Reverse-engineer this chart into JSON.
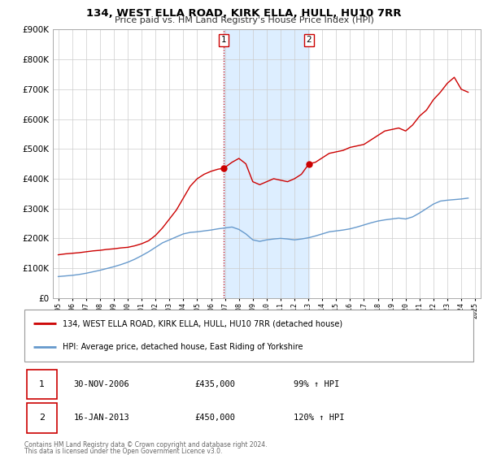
{
  "title": "134, WEST ELLA ROAD, KIRK ELLA, HULL, HU10 7RR",
  "subtitle": "Price paid vs. HM Land Registry's House Price Index (HPI)",
  "red_label": "134, WEST ELLA ROAD, KIRK ELLA, HULL, HU10 7RR (detached house)",
  "blue_label": "HPI: Average price, detached house, East Riding of Yorkshire",
  "transaction1": {
    "label": "1",
    "date": "30-NOV-2006",
    "price": "£435,000",
    "hpi": "99% ↑ HPI",
    "year": 2006.92
  },
  "transaction2": {
    "label": "2",
    "date": "16-JAN-2013",
    "price": "£450,000",
    "hpi": "120% ↑ HPI",
    "year": 2013.04
  },
  "footer1": "Contains HM Land Registry data © Crown copyright and database right 2024.",
  "footer2": "This data is licensed under the Open Government Licence v3.0.",
  "red_color": "#cc0000",
  "blue_color": "#6699cc",
  "shaded_color": "#ddeeff",
  "marker_color": "#cc0000",
  "ylim": [
    0,
    900000
  ],
  "yticks": [
    0,
    100000,
    200000,
    300000,
    400000,
    500000,
    600000,
    700000,
    800000,
    900000
  ],
  "xlim_start": 1994.6,
  "xlim_end": 2025.4,
  "red_x": [
    1995.0,
    1995.5,
    1996.0,
    1996.5,
    1997.0,
    1997.5,
    1998.0,
    1998.5,
    1999.0,
    1999.5,
    2000.0,
    2000.5,
    2001.0,
    2001.5,
    2002.0,
    2002.5,
    2003.0,
    2003.5,
    2004.0,
    2004.5,
    2005.0,
    2005.5,
    2006.0,
    2006.5,
    2006.92,
    2007.0,
    2007.5,
    2008.0,
    2008.5,
    2009.0,
    2009.5,
    2010.0,
    2010.5,
    2011.0,
    2011.5,
    2012.0,
    2012.5,
    2013.04,
    2013.5,
    2014.0,
    2014.5,
    2015.0,
    2015.5,
    2016.0,
    2016.5,
    2017.0,
    2017.5,
    2018.0,
    2018.5,
    2019.0,
    2019.5,
    2020.0,
    2020.5,
    2021.0,
    2021.5,
    2022.0,
    2022.5,
    2023.0,
    2023.5,
    2024.0,
    2024.5
  ],
  "red_y": [
    145000,
    148000,
    150000,
    152000,
    155000,
    158000,
    160000,
    163000,
    165000,
    168000,
    170000,
    175000,
    182000,
    192000,
    210000,
    235000,
    265000,
    295000,
    335000,
    375000,
    400000,
    415000,
    425000,
    432000,
    435000,
    438000,
    455000,
    468000,
    450000,
    390000,
    380000,
    390000,
    400000,
    395000,
    390000,
    400000,
    415000,
    450000,
    455000,
    470000,
    485000,
    490000,
    495000,
    505000,
    510000,
    515000,
    530000,
    545000,
    560000,
    565000,
    570000,
    560000,
    580000,
    610000,
    630000,
    665000,
    690000,
    720000,
    740000,
    700000,
    690000
  ],
  "blue_x": [
    1995.0,
    1995.5,
    1996.0,
    1996.5,
    1997.0,
    1997.5,
    1998.0,
    1998.5,
    1999.0,
    1999.5,
    2000.0,
    2000.5,
    2001.0,
    2001.5,
    2002.0,
    2002.5,
    2003.0,
    2003.5,
    2004.0,
    2004.5,
    2005.0,
    2005.5,
    2006.0,
    2006.5,
    2007.0,
    2007.5,
    2008.0,
    2008.5,
    2009.0,
    2009.5,
    2010.0,
    2010.5,
    2011.0,
    2011.5,
    2012.0,
    2012.5,
    2013.0,
    2013.5,
    2014.0,
    2014.5,
    2015.0,
    2015.5,
    2016.0,
    2016.5,
    2017.0,
    2017.5,
    2018.0,
    2018.5,
    2019.0,
    2019.5,
    2020.0,
    2020.5,
    2021.0,
    2021.5,
    2022.0,
    2022.5,
    2023.0,
    2023.5,
    2024.0,
    2024.5
  ],
  "blue_y": [
    72000,
    74000,
    76000,
    79000,
    83000,
    88000,
    93000,
    99000,
    105000,
    112000,
    120000,
    130000,
    142000,
    155000,
    170000,
    185000,
    195000,
    205000,
    215000,
    220000,
    222000,
    225000,
    228000,
    232000,
    235000,
    238000,
    230000,
    215000,
    195000,
    190000,
    195000,
    198000,
    200000,
    198000,
    195000,
    198000,
    202000,
    208000,
    215000,
    222000,
    225000,
    228000,
    232000,
    238000,
    245000,
    252000,
    258000,
    262000,
    265000,
    268000,
    265000,
    272000,
    285000,
    300000,
    315000,
    325000,
    328000,
    330000,
    332000,
    335000
  ]
}
